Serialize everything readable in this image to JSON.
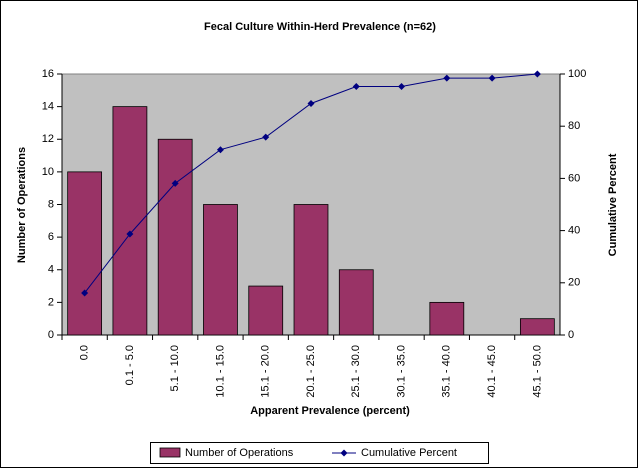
{
  "chart_data": {
    "type": "combo",
    "title": "Fecal Culture Within-Herd Prevalence (n=62)",
    "x_label": "Apparent Prevalence (percent)",
    "y_label": "Number of Operations",
    "y2_label": "Cumulative Percent",
    "categories": [
      "0.0",
      "0.1 - 5.0",
      "5.1 - 10.0",
      "10.1 - 15.0",
      "15.1 - 20.0",
      "20.1 - 25.0",
      "25.1 - 30.0",
      "30.1 - 35.0",
      "35.1 - 40.0",
      "40.1 - 45.0",
      "45.1 - 50.0"
    ],
    "series": [
      {
        "name": "Number of Operations",
        "type": "bar",
        "color": "#993366",
        "values": [
          10,
          14,
          12,
          8,
          3,
          8,
          4,
          0,
          2,
          0,
          1
        ]
      },
      {
        "name": "Cumulative Percent",
        "type": "line",
        "axis": "y2",
        "color": "#000080",
        "values": [
          16.1,
          38.7,
          58.1,
          71.0,
          75.8,
          88.7,
          95.2,
          95.2,
          98.4,
          98.4,
          100
        ]
      }
    ],
    "ylim": [
      0,
      16
    ],
    "yticks": [
      0,
      2,
      4,
      6,
      8,
      10,
      12,
      14,
      16
    ],
    "y2lim": [
      0,
      100
    ],
    "y2ticks": [
      0,
      20,
      40,
      60,
      80,
      100
    ],
    "grid": false,
    "legend": "bottom"
  }
}
